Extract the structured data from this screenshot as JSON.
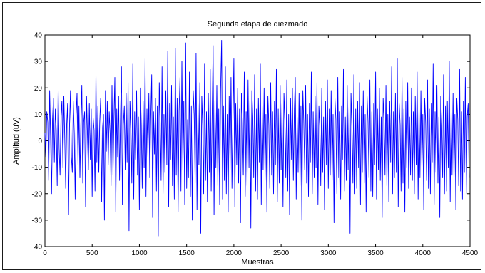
{
  "chart_data": {
    "type": "line",
    "title": "Segunda etapa de diezmado",
    "xlabel": "Muestras",
    "ylabel": "Amplitud (uV)",
    "xlim": [
      0,
      4500
    ],
    "ylim": [
      -40,
      40
    ],
    "xticks": [
      0,
      500,
      1000,
      1500,
      2000,
      2500,
      3000,
      3500,
      4000,
      4500
    ],
    "yticks": [
      -40,
      -30,
      -20,
      -10,
      0,
      10,
      20,
      30,
      40
    ],
    "grid": false,
    "legend": "none",
    "series": [
      {
        "color": "#0000ff",
        "x_start": 0,
        "x_step": 10,
        "values": [
          3,
          -6,
          11,
          7,
          -15,
          19,
          2,
          -20,
          8,
          16,
          -8,
          12,
          4,
          -17,
          20,
          -3,
          -13,
          9,
          15,
          -10,
          17,
          1,
          -18,
          6,
          14,
          -28,
          5,
          19,
          -6,
          -12,
          15,
          3,
          -22,
          10,
          18,
          -9,
          13,
          -14,
          6,
          21,
          -16,
          7,
          11,
          -25,
          17,
          2,
          -11,
          14,
          -7,
          12,
          -21,
          9,
          4,
          -19,
          26,
          -8,
          13,
          -12,
          7,
          16,
          -23,
          5,
          10,
          -30,
          19,
          -4,
          15,
          -9,
          11,
          3,
          -17,
          21,
          -13,
          8,
          24,
          -27,
          12,
          -6,
          17,
          -15,
          10,
          28,
          -24,
          6,
          13,
          -11,
          18,
          -8,
          22,
          -34,
          15,
          4,
          -16,
          29,
          -22,
          11,
          -7,
          19,
          -13,
          9,
          -26,
          20,
          6,
          -18,
          15,
          -10,
          31,
          -21,
          12,
          -6,
          18,
          -14,
          8,
          25,
          -29,
          11,
          -5,
          16,
          -19,
          13,
          -36,
          22,
          7,
          -15,
          28,
          -20,
          10,
          -12,
          19,
          -9,
          34,
          -25,
          14,
          -7,
          21,
          -17,
          9,
          -22,
          35,
          -13,
          16,
          -27,
          11,
          24,
          -19,
          30,
          -11,
          15,
          -24,
          37,
          -18,
          8,
          -14,
          26,
          -21,
          13,
          -30,
          19,
          10,
          -16,
          33,
          -26,
          14,
          -9,
          22,
          -35,
          17,
          6,
          -20,
          29,
          -15,
          11,
          -23,
          18,
          -12,
          27,
          -19,
          9,
          36,
          -28,
          15,
          -10,
          21,
          -17,
          12,
          -24,
          19,
          38,
          -22,
          13,
          -15,
          28,
          -20,
          10,
          -27,
          17,
          -11,
          24,
          -18,
          8,
          31,
          -25,
          14,
          -9,
          20,
          -16,
          12,
          -31,
          18,
          7,
          -13,
          26,
          -21,
          11,
          -17,
          23,
          -10,
          15,
          -33,
          19,
          9,
          -14,
          25,
          -19,
          12,
          -22,
          16,
          -8,
          29,
          -24,
          13,
          -11,
          20,
          -15,
          10,
          -27,
          17,
          6,
          -18,
          22,
          -13,
          11,
          -20,
          15,
          -9,
          27,
          -23,
          12,
          -16,
          21,
          -11,
          14,
          -25,
          18,
          8,
          -14,
          23,
          -19,
          10,
          -28,
          16,
          -7,
          20,
          -15,
          12,
          24,
          -22,
          9,
          -12,
          18,
          -17,
          13,
          -30,
          19,
          7,
          -11,
          21,
          -16,
          10,
          -21,
          14,
          -8,
          26,
          -20,
          11,
          -14,
          17,
          -10,
          22,
          -24,
          13,
          6,
          -17,
          20,
          -12,
          9,
          -26,
          15,
          -9,
          23,
          -18,
          12,
          -13,
          19,
          -15,
          10,
          -31,
          16,
          8,
          -20,
          24,
          -14,
          11,
          -22,
          13,
          -7,
          27,
          -19,
          9,
          -15,
          21,
          -11,
          14,
          -35,
          18,
          6,
          -16,
          25,
          -20,
          12,
          -18,
          15,
          -10,
          22,
          -24,
          13,
          -12,
          19,
          -16,
          10,
          -27,
          17,
          7,
          -14,
          23,
          -19,
          11,
          -21,
          14,
          -9,
          26,
          -22,
          12,
          -11,
          20,
          -15,
          9,
          -29,
          16,
          8,
          -13,
          21,
          -17,
          10,
          -23,
          15,
          -8,
          28,
          -20,
          11,
          -14,
          18,
          -12,
          31,
          -25,
          14,
          6,
          -19,
          24,
          -16,
          12,
          -27,
          15,
          -10,
          22,
          -18,
          9,
          -13,
          20,
          -15,
          11,
          -20,
          17,
          -9,
          26,
          -22,
          13,
          -14,
          19,
          -11,
          10,
          -26,
          16,
          7,
          -15,
          23,
          -18,
          12,
          -20,
          14,
          -8,
          29,
          -24,
          11,
          -12,
          21,
          -16,
          9,
          -29,
          17,
          6,
          -14,
          25,
          -20,
          13,
          -19,
          15,
          -10,
          30,
          -23,
          12,
          -13,
          18,
          -15,
          10,
          -26,
          16,
          8,
          -17,
          27,
          -19,
          11,
          -22,
          15,
          -12,
          24,
          -20,
          9,
          14,
          -14
        ]
      }
    ]
  }
}
